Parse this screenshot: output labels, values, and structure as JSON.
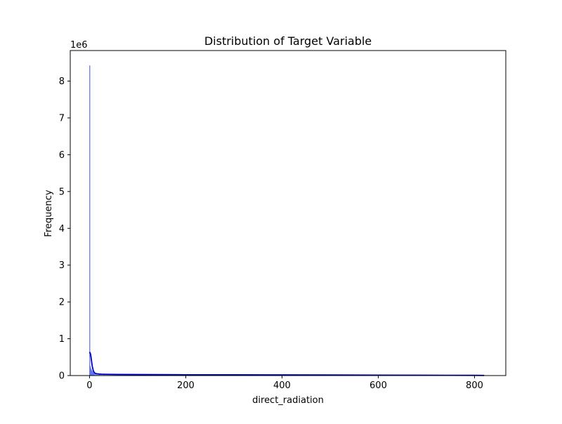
{
  "chart_data": {
    "type": "histogram",
    "title": "Distribution of Target Variable",
    "xlabel": "direct_radiation",
    "ylabel": "Frequency",
    "y_offset_label": "1e6",
    "xlim": [
      -40,
      865
    ],
    "ylim": [
      0,
      8830000
    ],
    "x_ticks": [
      0,
      200,
      400,
      600,
      800
    ],
    "y_ticks": [
      0,
      1000000,
      2000000,
      3000000,
      4000000,
      5000000,
      6000000,
      7000000,
      8000000
    ],
    "y_tick_labels": [
      "0",
      "1",
      "2",
      "3",
      "4",
      "5",
      "6",
      "7",
      "8"
    ],
    "grid": false,
    "legend": "none",
    "colors": {
      "bars_fill": "#7b8cf0",
      "bars_edge": "#5a6ee8",
      "kde": "#0000cc"
    },
    "series": [
      {
        "kind": "histogram",
        "bin_width": 1,
        "bins": [
          {
            "x0": 0,
            "x1": 1,
            "count": 8420000
          },
          {
            "x0": 1,
            "x1": 2,
            "count": 250000
          },
          {
            "x0": 2,
            "x1": 3,
            "count": 200000
          },
          {
            "x0": 3,
            "x1": 4,
            "count": 170000
          },
          {
            "x0": 4,
            "x1": 5,
            "count": 140000
          },
          {
            "x0": 5,
            "x1": 6,
            "count": 120000
          },
          {
            "x0": 6,
            "x1": 7,
            "count": 100000
          },
          {
            "x0": 7,
            "x1": 8,
            "count": 85000
          },
          {
            "x0": 8,
            "x1": 9,
            "count": 70000
          },
          {
            "x0": 9,
            "x1": 10,
            "count": 60000
          },
          {
            "x0": 10,
            "x1": 12,
            "count": 50000
          },
          {
            "x0": 12,
            "x1": 15,
            "count": 42000
          },
          {
            "x0": 15,
            "x1": 20,
            "count": 38000
          },
          {
            "x0": 20,
            "x1": 30,
            "count": 34000
          },
          {
            "x0": 30,
            "x1": 50,
            "count": 30000
          },
          {
            "x0": 50,
            "x1": 100,
            "count": 26000
          },
          {
            "x0": 100,
            "x1": 200,
            "count": 22000
          },
          {
            "x0": 200,
            "x1": 300,
            "count": 20000
          },
          {
            "x0": 300,
            "x1": 400,
            "count": 18000
          },
          {
            "x0": 400,
            "x1": 500,
            "count": 16000
          },
          {
            "x0": 500,
            "x1": 600,
            "count": 14000
          },
          {
            "x0": 600,
            "x1": 700,
            "count": 12000
          },
          {
            "x0": 700,
            "x1": 780,
            "count": 9000
          },
          {
            "x0": 780,
            "x1": 820,
            "count": 5000
          }
        ]
      },
      {
        "kind": "kde",
        "x": [
          0,
          1,
          2,
          3,
          4,
          5,
          6,
          8,
          10,
          12,
          15,
          20,
          25,
          30,
          40,
          60,
          100,
          200,
          300,
          400,
          500,
          600,
          700,
          800,
          820
        ],
        "y": [
          640000,
          620000,
          590000,
          520000,
          420000,
          320000,
          240000,
          130000,
          80000,
          60000,
          50000,
          42000,
          38000,
          36000,
          33000,
          30000,
          27000,
          22000,
          20000,
          18000,
          15000,
          12000,
          9000,
          6000,
          4000
        ]
      }
    ]
  }
}
